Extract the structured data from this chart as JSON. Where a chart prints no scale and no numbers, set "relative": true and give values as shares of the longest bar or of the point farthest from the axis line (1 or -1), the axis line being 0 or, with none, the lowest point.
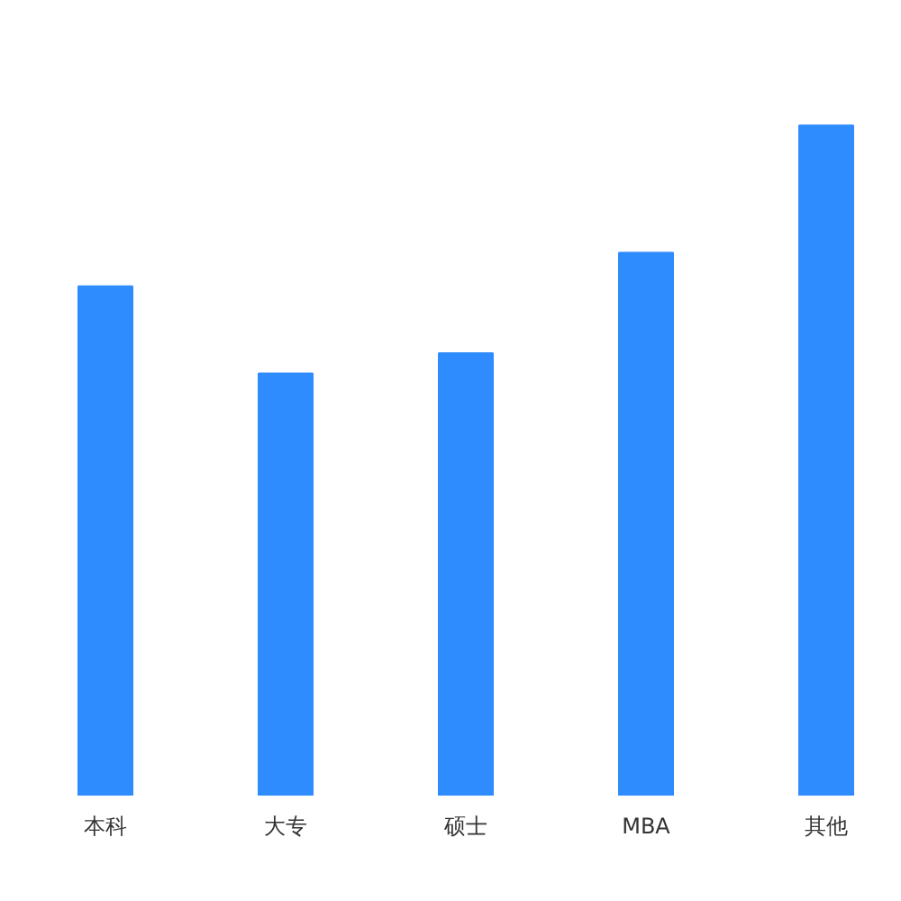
{
  "chart_data": {
    "type": "bar",
    "relative": true,
    "categories": [
      "本科",
      "大专",
      "硕士",
      "MBA",
      "其他"
    ],
    "values": [
      0.76,
      0.63,
      0.66,
      0.81,
      1.0
    ],
    "color": "#2e8cff",
    "grid": false
  }
}
